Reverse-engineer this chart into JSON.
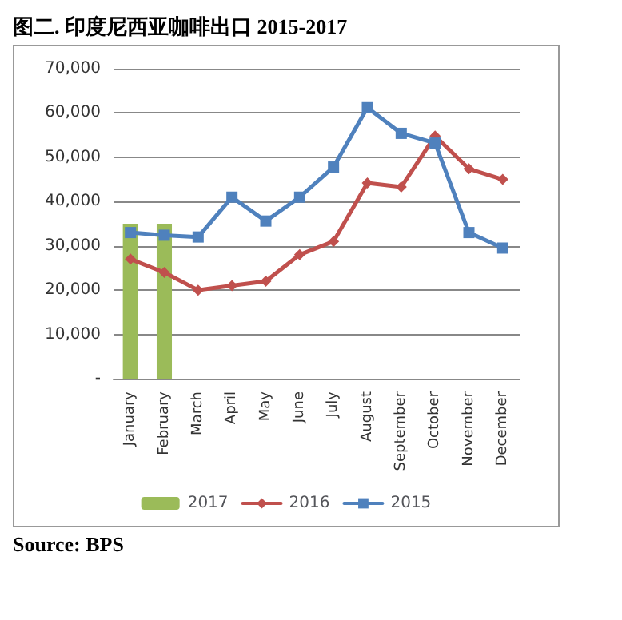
{
  "chart_data": {
    "type": "line",
    "title": "图二. 印度尼西亚咖啡出口 2015-2017",
    "annotations": [
      "Source: BPS"
    ],
    "categories": [
      "January",
      "February",
      "March",
      "April",
      "May",
      "June",
      "July",
      "August",
      "September",
      "October",
      "November",
      "December"
    ],
    "series": [
      {
        "name": "2017",
        "type": "bar",
        "color": "#9bbb59",
        "values": [
          35000,
          35000,
          null,
          null,
          null,
          null,
          null,
          null,
          null,
          null,
          null,
          null
        ]
      },
      {
        "name": "2016",
        "color": "#c0504d",
        "marker": "diamond",
        "values": [
          27000,
          24000,
          20000,
          21000,
          22000,
          28000,
          31000,
          44200,
          43300,
          54800,
          47400,
          45000
        ]
      },
      {
        "name": "2015",
        "color": "#4f81bd",
        "marker": "square",
        "values": [
          33000,
          32400,
          32000,
          41000,
          35600,
          41000,
          47800,
          61200,
          55400,
          53200,
          33000,
          29500
        ]
      }
    ],
    "ylim": [
      0,
      70000
    ],
    "yticks": [
      {
        "value": 0,
        "label": "-"
      },
      {
        "value": 10000,
        "label": "10,000"
      },
      {
        "value": 20000,
        "label": "20,000"
      },
      {
        "value": 30000,
        "label": "30,000"
      },
      {
        "value": 40000,
        "label": "40,000"
      },
      {
        "value": 50000,
        "label": "50,000"
      },
      {
        "value": 60000,
        "label": "60,000"
      },
      {
        "value": 70000,
        "label": "70,000"
      }
    ],
    "grid": "y",
    "legend": "bottom"
  }
}
